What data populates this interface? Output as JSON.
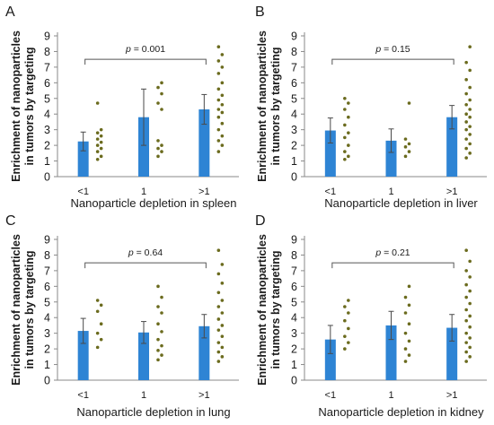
{
  "colors": {
    "bar": "#2e84d4",
    "point": "#6b6b1e",
    "axis": "#8a8a8a",
    "errorbar": "#4a4a4a",
    "text": "#1a1a1a"
  },
  "y_axis_title": [
    "Enrichment of nanoparticles",
    "in tumors by targeting"
  ],
  "chart_data": [
    {
      "panel": "A",
      "type": "bar",
      "categories": [
        "<1",
        "1",
        ">1"
      ],
      "values": [
        2.25,
        3.8,
        4.3
      ],
      "errors": [
        0.6,
        1.8,
        0.95
      ],
      "points": [
        [
          1.1,
          1.3,
          1.6,
          1.8,
          2.0,
          2.2,
          2.4,
          2.6,
          2.8,
          3.0,
          4.7
        ],
        [
          1.3,
          1.6,
          1.8,
          2.0,
          2.3,
          4.3,
          4.7,
          5.3,
          5.7,
          6.0
        ],
        [
          1.6,
          2.0,
          2.3,
          2.6,
          3.0,
          3.4,
          3.8,
          4.1,
          4.3,
          4.6,
          4.9,
          5.2,
          5.6,
          6.0,
          6.6,
          7.0,
          7.4,
          7.8,
          8.3
        ]
      ],
      "ylim": [
        0,
        9
      ],
      "yticks": [
        0,
        1,
        2,
        3,
        4,
        5,
        6,
        7,
        8,
        9
      ],
      "xlabel": "Nanoparticle depletion in spleen",
      "p_prefix": "p",
      "p_text": " = 0.001"
    },
    {
      "panel": "B",
      "type": "bar",
      "categories": [
        "<1",
        "1",
        ">1"
      ],
      "values": [
        2.95,
        2.3,
        3.8
      ],
      "errors": [
        0.8,
        0.75,
        0.75
      ],
      "points": [
        [
          1.1,
          1.3,
          1.6,
          2.0,
          2.5,
          2.8,
          3.3,
          3.8,
          4.3,
          4.7,
          5.0
        ],
        [
          1.3,
          1.6,
          1.9,
          2.1,
          2.4,
          4.7
        ],
        [
          1.2,
          1.5,
          1.8,
          2.1,
          2.4,
          2.7,
          3.0,
          3.2,
          3.5,
          3.8,
          4.0,
          4.3,
          4.6,
          4.9,
          5.3,
          5.7,
          6.2,
          6.8,
          7.3,
          8.3
        ]
      ],
      "ylim": [
        0,
        9
      ],
      "yticks": [
        0,
        1,
        2,
        3,
        4,
        5,
        6,
        7,
        8,
        9
      ],
      "xlabel": "Nanoparticle depletion in liver",
      "p_prefix": "p",
      "p_text": " = 0.15"
    },
    {
      "panel": "C",
      "type": "bar",
      "categories": [
        "<1",
        "1",
        ">1"
      ],
      "values": [
        3.15,
        3.05,
        3.45
      ],
      "errors": [
        0.8,
        0.7,
        0.75
      ],
      "points": [
        [
          2.1,
          2.6,
          3.0,
          3.6,
          4.4,
          4.8,
          5.1
        ],
        [
          1.3,
          1.6,
          1.9,
          2.2,
          2.6,
          3.1,
          3.6,
          4.3,
          4.7,
          5.3,
          6.0
        ],
        [
          1.2,
          1.5,
          1.8,
          2.1,
          2.4,
          2.8,
          3.2,
          3.5,
          3.9,
          4.3,
          4.7,
          5.1,
          5.6,
          6.2,
          6.8,
          7.4,
          8.3
        ]
      ],
      "ylim": [
        0,
        9
      ],
      "yticks": [
        0,
        1,
        2,
        3,
        4,
        5,
        6,
        7,
        8,
        9
      ],
      "xlabel": "Nanoparticle depletion in lung",
      "p_prefix": "p",
      "p_text": " = 0.64"
    },
    {
      "panel": "D",
      "type": "bar",
      "categories": [
        "<1",
        "1",
        ">1"
      ],
      "values": [
        2.6,
        3.5,
        3.35
      ],
      "errors": [
        0.9,
        0.9,
        0.85
      ],
      "points": [
        [
          2.0,
          2.4,
          2.8,
          3.3,
          3.8,
          4.3,
          4.7,
          5.1
        ],
        [
          1.2,
          1.6,
          2.0,
          2.5,
          3.0,
          3.6,
          4.3,
          4.8,
          5.3,
          6.0
        ],
        [
          1.2,
          1.5,
          1.8,
          2.1,
          2.4,
          2.7,
          3.0,
          3.4,
          3.8,
          4.1,
          4.5,
          4.9,
          5.3,
          5.7,
          6.1,
          6.6,
          7.0,
          7.6,
          8.3
        ]
      ],
      "ylim": [
        0,
        9
      ],
      "yticks": [
        0,
        1,
        2,
        3,
        4,
        5,
        6,
        7,
        8,
        9
      ],
      "xlabel": "Nanoparticle depletion in kidney",
      "p_prefix": "p",
      "p_text": " = 0.21"
    }
  ]
}
